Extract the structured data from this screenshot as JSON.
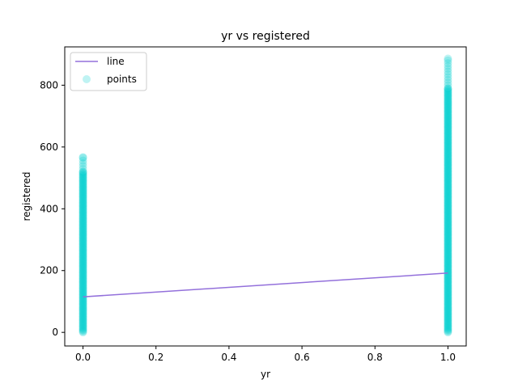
{
  "chart_data": {
    "type": "scatter",
    "title": "yr vs registered",
    "xlabel": "yr",
    "ylabel": "registered",
    "xlim": [
      -0.05,
      1.05
    ],
    "ylim": [
      -44,
      924
    ],
    "x_ticks": [
      "0.0",
      "0.2",
      "0.4",
      "0.6",
      "0.8",
      "1.0"
    ],
    "y_ticks": [
      "0",
      "200",
      "400",
      "600",
      "800"
    ],
    "legend": {
      "location": "upper left",
      "entries": [
        "line",
        "points"
      ]
    },
    "series": [
      {
        "name": "line",
        "type": "line",
        "color": "#9370db",
        "x": [
          0,
          1
        ],
        "y": [
          115,
          192
        ]
      },
      {
        "name": "points",
        "type": "scatter",
        "color": "#00ced1",
        "alpha": 0.25,
        "groups": [
          {
            "x": 0,
            "y_min": 0,
            "y_max": 567,
            "dense_max": 520
          },
          {
            "x": 1,
            "y_min": 0,
            "y_max": 886,
            "dense_max": 790
          }
        ]
      }
    ]
  }
}
